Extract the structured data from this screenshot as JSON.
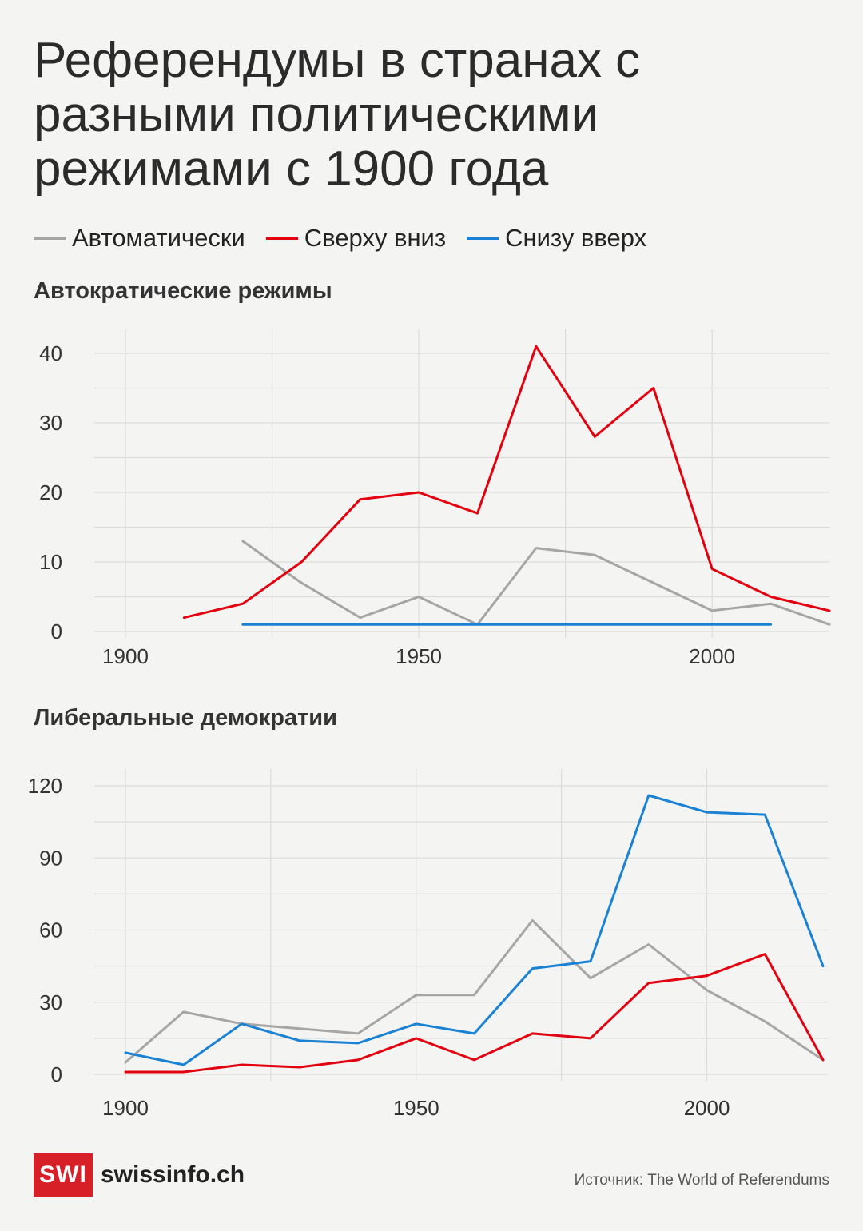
{
  "title": "Референдумы в странах с разными политическими режимами с 1900 года",
  "legend": [
    {
      "label": "Автоматически",
      "color": "#a6a6a6"
    },
    {
      "label": "Сверху вниз",
      "color": "#e3000f"
    },
    {
      "label": "Снизу вверх",
      "color": "#1a82d4"
    }
  ],
  "chart_data": [
    {
      "type": "line",
      "title": "Автократические режимы",
      "xlim": [
        1900,
        2020
      ],
      "ylim": [
        0,
        40
      ],
      "x_ticks": [
        "1900",
        "1950",
        "2000"
      ],
      "y_ticks": [
        "0",
        "10",
        "20",
        "30",
        "40"
      ],
      "grid": true,
      "series": [
        {
          "name": "Автоматически",
          "color": "#a6a6a6",
          "x": [
            1920,
            1930,
            1940,
            1950,
            1960,
            1970,
            1980,
            1990,
            2000,
            2010,
            2020
          ],
          "y": [
            13,
            7,
            2,
            5,
            1,
            12,
            11,
            7,
            3,
            4,
            1
          ]
        },
        {
          "name": "Сверху вниз",
          "color": "#e3000f",
          "x": [
            1910,
            1920,
            1930,
            1940,
            1950,
            1960,
            1970,
            1980,
            1990,
            2000,
            2010,
            2020
          ],
          "y": [
            2,
            4,
            10,
            19,
            20,
            17,
            41,
            28,
            35,
            9,
            5,
            3
          ]
        },
        {
          "name": "Снизу вверх",
          "color": "#1a82d4",
          "x": [
            1920,
            1930,
            1940,
            1950,
            1960,
            1970,
            1980,
            1990,
            2000,
            2010
          ],
          "y": [
            1,
            1,
            1,
            1,
            1,
            1,
            1,
            1,
            1,
            1
          ]
        }
      ]
    },
    {
      "type": "line",
      "title": "Либеральные демократии",
      "xlim": [
        1900,
        2020
      ],
      "ylim": [
        0,
        120
      ],
      "x_ticks": [
        "1900",
        "1950",
        "2000"
      ],
      "y_ticks": [
        "0",
        "30",
        "60",
        "90",
        "120"
      ],
      "grid": true,
      "series": [
        {
          "name": "Автоматически",
          "color": "#a6a6a6",
          "x": [
            1900,
            1910,
            1920,
            1930,
            1940,
            1950,
            1960,
            1970,
            1980,
            1990,
            2000,
            2010,
            2020
          ],
          "y": [
            5,
            26,
            21,
            19,
            17,
            33,
            33,
            64,
            40,
            54,
            35,
            22,
            6
          ]
        },
        {
          "name": "Сверху вниз",
          "color": "#e3000f",
          "x": [
            1900,
            1910,
            1920,
            1930,
            1940,
            1950,
            1960,
            1970,
            1980,
            1990,
            2000,
            2010,
            2020
          ],
          "y": [
            1,
            1,
            4,
            3,
            6,
            15,
            6,
            17,
            15,
            38,
            41,
            50,
            6
          ]
        },
        {
          "name": "Снизу вверх",
          "color": "#1a82d4",
          "x": [
            1900,
            1910,
            1920,
            1930,
            1940,
            1950,
            1960,
            1970,
            1980,
            1990,
            2000,
            2010,
            2020
          ],
          "y": [
            9,
            4,
            21,
            14,
            13,
            21,
            17,
            44,
            47,
            116,
            109,
            108,
            45
          ]
        }
      ]
    }
  ],
  "footer": {
    "logo_mark": "SWI",
    "logo_text": "swissinfo.ch",
    "source": "Источник: The World of Referendums"
  }
}
